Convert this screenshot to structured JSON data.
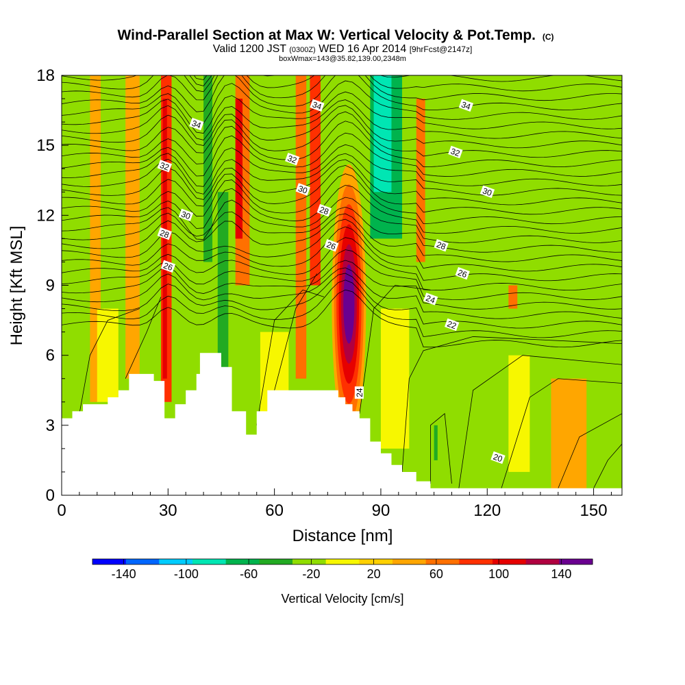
{
  "chart_data": {
    "type": "heatmap",
    "title": "Wind-Parallel Section at Max W: Vertical Velocity & Pot.Temp.",
    "title_mark": "(C)",
    "subtitle_1": {
      "valid": "Valid 1200 JST",
      "utc": "(0300Z)",
      "date": "WED 16 Apr 2014",
      "fcst": "[9hrFcst@2147z]"
    },
    "subtitle_2": "boxWmax=143@35.82,139.00,2348m",
    "xlabel": "Distance [nm]",
    "ylabel": "Height [Kft MSL]",
    "xlim": [
      0,
      158
    ],
    "ylim": [
      0,
      18
    ],
    "xticks": [
      0,
      30,
      60,
      90,
      120,
      150
    ],
    "yticks": [
      0,
      3,
      6,
      9,
      12,
      15,
      18
    ],
    "grid": false,
    "colorbar": {
      "label": "Vertical Velocity [cm/s]",
      "range": [
        -160,
        160
      ],
      "step": 20,
      "tick_labels": [
        -140,
        -100,
        -60,
        -20,
        20,
        60,
        100,
        140
      ],
      "colors": [
        "#0000ff",
        "#0066ff",
        "#00ccff",
        "#00e6b3",
        "#00b34d",
        "#22aa22",
        "#90dd00",
        "#f7f700",
        "#ffd000",
        "#ffa600",
        "#ff7000",
        "#ff3000",
        "#e60000",
        "#b00040",
        "#6a0090"
      ]
    },
    "series": [
      {
        "kind": "vertical_velocity_bands",
        "bands": [
          {
            "x": 3,
            "w": 2,
            "zlow": 4,
            "ztop": 18,
            "value": -30
          },
          {
            "x": 8,
            "w": 3,
            "zlow": 4,
            "ztop": 18,
            "value": 20
          },
          {
            "x": 18,
            "w": 4,
            "zlow": 5,
            "ztop": 18,
            "value": 20
          },
          {
            "x": 22,
            "w": 2,
            "zlow": 5,
            "ztop": 18,
            "value": -30
          },
          {
            "x": 28,
            "w": 3,
            "zlow": 4,
            "ztop": 18,
            "value": 70
          },
          {
            "x": 28.5,
            "w": 1.2,
            "zlow": 5,
            "ztop": 17,
            "value": 90
          },
          {
            "x": 33,
            "w": 3,
            "zlow": 8,
            "ztop": 18,
            "value": -30
          },
          {
            "x": 40,
            "w": 2.5,
            "zlow": 10,
            "ztop": 18,
            "value": -60
          },
          {
            "x": 44,
            "w": 3,
            "zlow": 5,
            "ztop": 13,
            "value": -60
          },
          {
            "x": 49,
            "w": 4,
            "zlow": 9,
            "ztop": 18,
            "value": 50
          },
          {
            "x": 49,
            "w": 2,
            "zlow": 11,
            "ztop": 17,
            "value": 90
          },
          {
            "x": 56,
            "w": 3,
            "zlow": 6,
            "ztop": 18,
            "value": -30
          },
          {
            "x": 61,
            "w": 2,
            "zlow": 7,
            "ztop": 9,
            "value": -30
          },
          {
            "x": 66,
            "w": 3,
            "zlow": 5,
            "ztop": 18,
            "value": 40
          },
          {
            "x": 70,
            "w": 3,
            "zlow": 9,
            "ztop": 18,
            "value": 70
          },
          {
            "x": 74,
            "w": 3,
            "zlow": 10,
            "ztop": 18,
            "value": -30
          },
          {
            "x": 87,
            "w": 10,
            "zlow": 11,
            "ztop": 18,
            "value": -65
          },
          {
            "x": 88,
            "w": 5,
            "zlow": 13,
            "ztop": 18,
            "value": -90
          },
          {
            "x": 96,
            "w": 3,
            "zlow": 9,
            "ztop": 18,
            "value": -30
          },
          {
            "x": 100,
            "w": 2.5,
            "zlow": 10,
            "ztop": 17,
            "value": 40
          },
          {
            "x": 114,
            "w": 4,
            "zlow": 10,
            "ztop": 18,
            "value": -30
          },
          {
            "x": 118,
            "w": 4,
            "zlow": 12,
            "ztop": 18,
            "value": -30
          },
          {
            "x": 126,
            "w": 2.5,
            "zlow": 8,
            "ztop": 9,
            "value": 40
          },
          {
            "x": 107,
            "w": 6,
            "zlow": 0,
            "ztop": 6,
            "value": -25
          },
          {
            "x": 105,
            "w": 1,
            "zlow": 1.5,
            "ztop": 3,
            "value": -50
          },
          {
            "x": 138,
            "w": 10,
            "zlow": 0,
            "ztop": 5,
            "value": 20
          },
          {
            "x": 10,
            "w": 6,
            "zlow": 4,
            "ztop": 8,
            "value": -20
          },
          {
            "x": 56,
            "w": 8,
            "zlow": 3,
            "ztop": 7,
            "value": -20
          },
          {
            "x": 90,
            "w": 8,
            "zlow": 2,
            "ztop": 8,
            "value": -20
          },
          {
            "x": 126,
            "w": 6,
            "zlow": 1,
            "ztop": 6,
            "value": -20
          }
        ],
        "peak_updraft": {
          "x": 81,
          "z": 8.2,
          "value": 143
        }
      },
      {
        "kind": "potential_temperature_contours",
        "labels": [
          {
            "text": "34",
            "x": 38,
            "z": 15.9
          },
          {
            "text": "34",
            "x": 72,
            "z": 16.7
          },
          {
            "text": "34",
            "x": 114,
            "z": 16.7
          },
          {
            "text": "32",
            "x": 29,
            "z": 14.1
          },
          {
            "text": "32",
            "x": 65,
            "z": 14.4
          },
          {
            "text": "32",
            "x": 111,
            "z": 14.7
          },
          {
            "text": "30",
            "x": 35,
            "z": 12.0
          },
          {
            "text": "30",
            "x": 68,
            "z": 13.1
          },
          {
            "text": "30",
            "x": 120,
            "z": 13.0
          },
          {
            "text": "28",
            "x": 29,
            "z": 11.2
          },
          {
            "text": "28",
            "x": 74,
            "z": 12.2
          },
          {
            "text": "28",
            "x": 107,
            "z": 10.7
          },
          {
            "text": "26",
            "x": 30,
            "z": 9.8
          },
          {
            "text": "26",
            "x": 76,
            "z": 10.7
          },
          {
            "text": "26",
            "x": 113,
            "z": 9.5
          },
          {
            "text": "24",
            "x": 104,
            "z": 8.4
          },
          {
            "text": "24",
            "x": 84,
            "z": 4.4
          },
          {
            "text": "22",
            "x": 110,
            "z": 7.3
          },
          {
            "text": "20",
            "x": 123,
            "z": 1.6
          }
        ]
      }
    ],
    "terrain": [
      [
        0,
        3.3
      ],
      [
        3,
        3.6
      ],
      [
        6,
        3.9
      ],
      [
        13,
        4.2
      ],
      [
        16,
        4.5
      ],
      [
        19,
        5.2
      ],
      [
        26,
        4.9
      ],
      [
        29,
        3.3
      ],
      [
        32,
        3.9
      ],
      [
        35,
        4.5
      ],
      [
        38,
        5.2
      ],
      [
        39,
        6.1
      ],
      [
        45,
        5.5
      ],
      [
        48,
        3.6
      ],
      [
        52,
        2.6
      ],
      [
        55,
        3.6
      ],
      [
        58,
        4.5
      ],
      [
        72,
        4.5
      ],
      [
        78,
        4.2
      ],
      [
        80,
        3.9
      ],
      [
        82,
        3.6
      ],
      [
        84,
        3.3
      ],
      [
        87,
        2.3
      ],
      [
        90,
        1.8
      ],
      [
        93,
        1.3
      ],
      [
        96,
        1.0
      ],
      [
        100,
        0.6
      ],
      [
        104,
        0.3
      ],
      [
        158,
        0.3
      ]
    ]
  }
}
